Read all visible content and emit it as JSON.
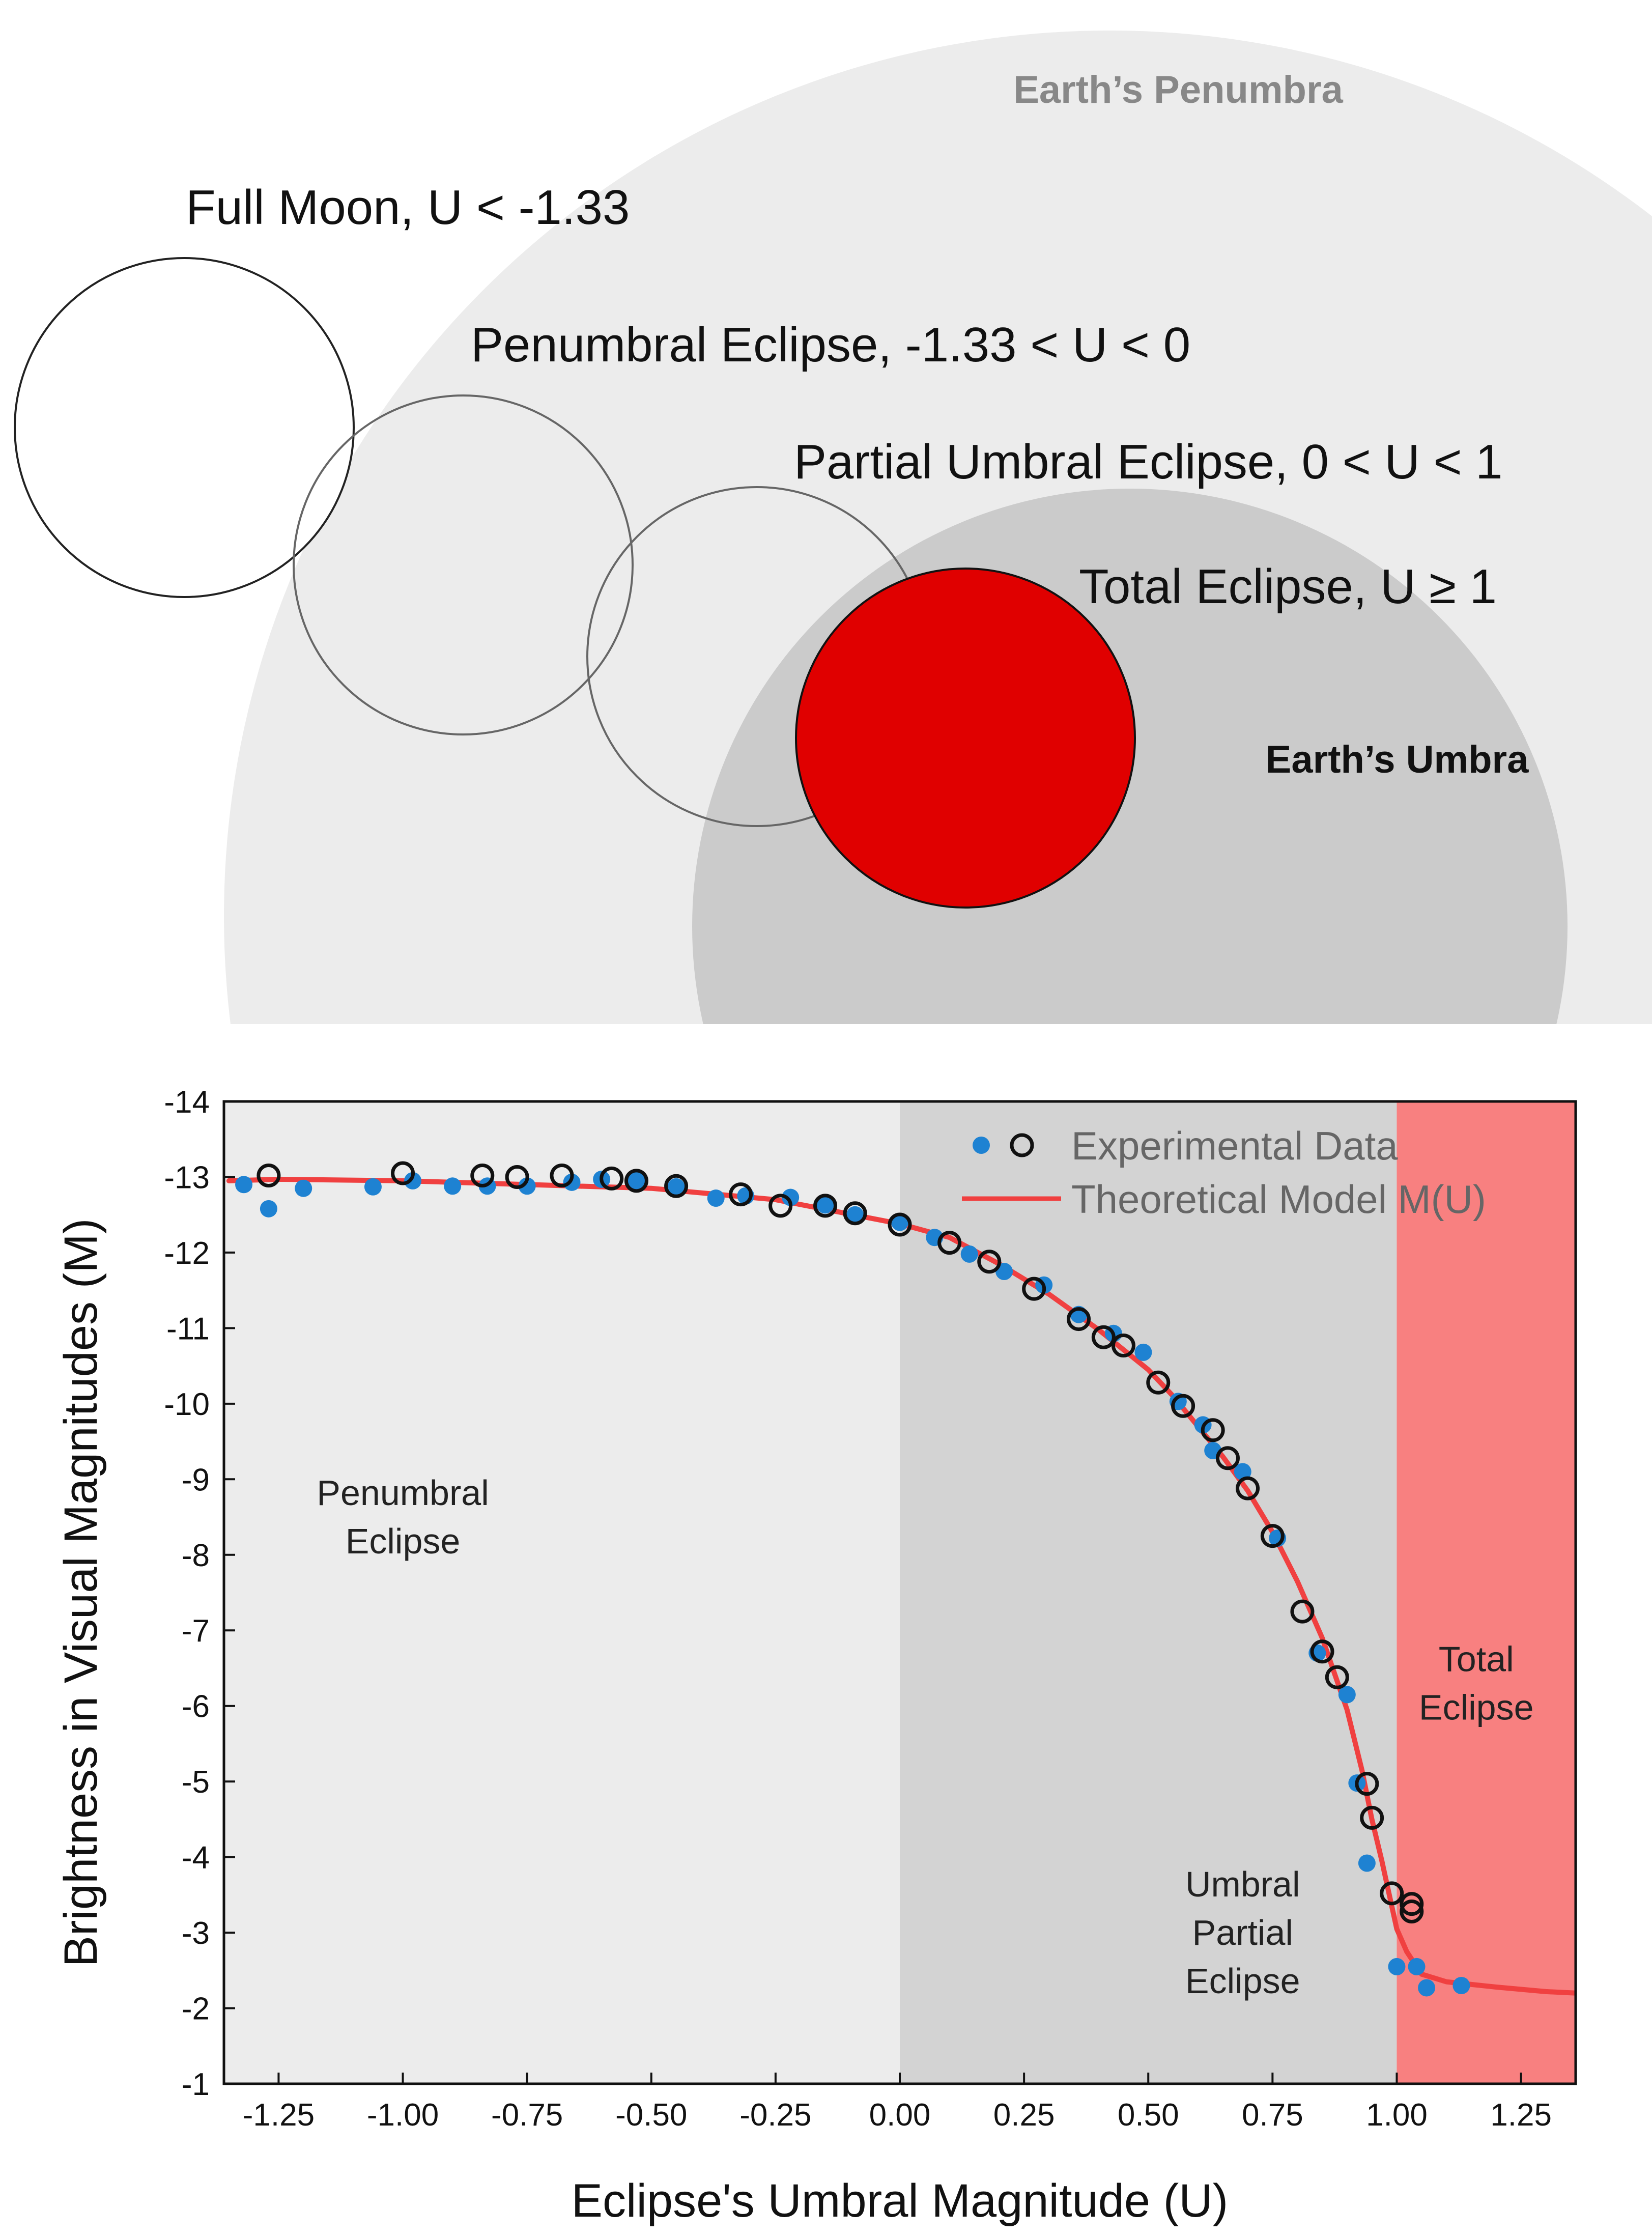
{
  "colors": {
    "penumbra": "#ececec",
    "umbra": "#cbcbcb",
    "total_moon": "#e00000",
    "region_penumbral": "#ececec",
    "region_umbral_partial": "#d3d3d3",
    "region_total": "#f88080",
    "dot": "#1e82d2",
    "model": "#f04040"
  },
  "diagram": {
    "penumbra_label": "Earth’s Penumbra",
    "umbra_label": "Earth’s Umbra",
    "stages": [
      {
        "label": "Full Moon, U < -1.33"
      },
      {
        "label": "Penumbral Eclipse, -1.33 < U < 0"
      },
      {
        "label": "Partial Umbral Eclipse, 0 < U < 1"
      },
      {
        "label": "Total Eclipse, U ≥ 1"
      }
    ]
  },
  "chart_data": {
    "type": "scatter",
    "title": "",
    "xlabel": "Eclipse's Umbral Magnitude (U)",
    "ylabel": "Brightness in Visual Magnitudes (M)",
    "xlim": [
      -1.36,
      1.36
    ],
    "ylim": [
      -14,
      -1
    ],
    "y_axis_inverted": true,
    "x_ticks": [
      -1.25,
      -1.0,
      -0.75,
      -0.5,
      -0.25,
      0.0,
      0.25,
      0.5,
      0.75,
      1.0,
      1.25
    ],
    "x_tick_labels": [
      "-1.25",
      "-1.00",
      "-0.75",
      "-0.50",
      "-0.25",
      "0.00",
      "0.25",
      "0.50",
      "0.75",
      "1.00",
      "1.25"
    ],
    "y_ticks": [
      -14,
      -13,
      -12,
      -11,
      -10,
      -9,
      -8,
      -7,
      -6,
      -5,
      -4,
      -3,
      -2,
      -1
    ],
    "y_tick_labels": [
      "-14",
      "-13",
      "-12",
      "-11",
      "-10",
      "-9",
      "-8",
      "-7",
      "-6",
      "-5",
      "-4",
      "-3",
      "-2",
      "-1"
    ],
    "regions": [
      {
        "name": "penumbral",
        "x0": -1.36,
        "x1": 0.0,
        "label_lines": [
          "Penumbral",
          "Eclipse"
        ],
        "label_x": -1.0,
        "label_y": -8.5
      },
      {
        "name": "umbral-partial",
        "x0": 0.0,
        "x1": 1.0,
        "label_lines": [
          "Umbral",
          "Partial",
          "Eclipse"
        ],
        "label_x": 0.69,
        "label_y": -3.0
      },
      {
        "name": "total",
        "x0": 1.0,
        "x1": 1.36,
        "label_lines": [
          "Total",
          "Eclipse"
        ],
        "label_x": 1.16,
        "label_y": -6.3
      }
    ],
    "legend": {
      "position": "top-right",
      "entries": [
        "Experimental Data",
        "Theoretical Model M(U)"
      ]
    },
    "series": [
      {
        "name": "Experimental Data (filled)",
        "marker": "filled-circle",
        "x": [
          -1.32,
          -1.27,
          -1.2,
          -1.06,
          -0.98,
          -0.9,
          -0.83,
          -0.75,
          -0.66,
          -0.6,
          -0.53,
          -0.45,
          -0.37,
          -0.31,
          -0.22,
          -0.15,
          -0.09,
          0.0,
          0.07,
          0.14,
          0.21,
          0.29,
          0.36,
          0.43,
          0.49,
          0.56,
          0.61,
          0.63,
          0.69,
          0.76,
          0.84,
          0.9,
          0.92,
          0.94,
          1.0,
          1.04,
          1.06,
          1.13
        ],
        "y": [
          -12.9,
          -12.58,
          -12.85,
          -12.87,
          -12.95,
          -12.88,
          -12.88,
          -12.88,
          -12.93,
          -12.97,
          -12.95,
          -12.87,
          -12.72,
          -12.75,
          -12.73,
          -12.63,
          -12.5,
          -12.4,
          -12.2,
          -11.98,
          -11.75,
          -11.57,
          -11.18,
          -10.93,
          -10.68,
          -10.03,
          -9.72,
          -9.38,
          -9.1,
          -8.22,
          -6.7,
          -6.15,
          -4.98,
          -3.92,
          -2.55,
          -2.55,
          -2.27,
          -2.3
        ]
      },
      {
        "name": "Experimental Data (open)",
        "marker": "open-circle",
        "x": [
          -1.27,
          -1.0,
          -0.84,
          -0.77,
          -0.68,
          -0.58,
          -0.53,
          -0.45,
          -0.32,
          -0.24,
          -0.15,
          -0.09,
          0.0,
          0.1,
          0.18,
          0.27,
          0.36,
          0.41,
          0.45,
          0.52,
          0.57,
          0.63,
          0.66,
          0.7,
          0.75,
          0.81,
          0.85,
          0.88,
          0.94,
          0.95,
          0.99,
          1.03,
          1.03
        ],
        "y": [
          -13.02,
          -13.05,
          -13.02,
          -13.0,
          -13.02,
          -12.98,
          -12.95,
          -12.88,
          -12.77,
          -12.62,
          -12.62,
          -12.52,
          -12.37,
          -12.13,
          -11.88,
          -11.52,
          -11.12,
          -10.88,
          -10.77,
          -10.28,
          -9.97,
          -9.65,
          -9.28,
          -8.88,
          -8.25,
          -7.25,
          -6.72,
          -6.38,
          -4.97,
          -4.52,
          -3.52,
          -3.38,
          -3.28
        ]
      },
      {
        "name": "Theoretical Model M(U)",
        "marker": "line",
        "x": [
          -1.35,
          -1.25,
          -1.0,
          -0.75,
          -0.5,
          -0.25,
          0.0,
          0.1,
          0.2,
          0.3,
          0.4,
          0.5,
          0.55,
          0.6,
          0.65,
          0.7,
          0.75,
          0.8,
          0.85,
          0.9,
          0.93,
          0.95,
          0.97,
          0.98,
          0.99,
          1.0,
          1.02,
          1.05,
          1.1,
          1.2,
          1.3,
          1.36
        ],
        "y": [
          -12.95,
          -12.97,
          -12.95,
          -12.9,
          -12.85,
          -12.7,
          -12.38,
          -12.2,
          -11.85,
          -11.45,
          -10.98,
          -10.45,
          -10.1,
          -9.7,
          -9.3,
          -8.85,
          -8.3,
          -7.65,
          -6.9,
          -5.95,
          -5.15,
          -4.5,
          -3.95,
          -3.65,
          -3.35,
          -3.05,
          -2.75,
          -2.45,
          -2.35,
          -2.28,
          -2.22,
          -2.2
        ]
      }
    ]
  }
}
